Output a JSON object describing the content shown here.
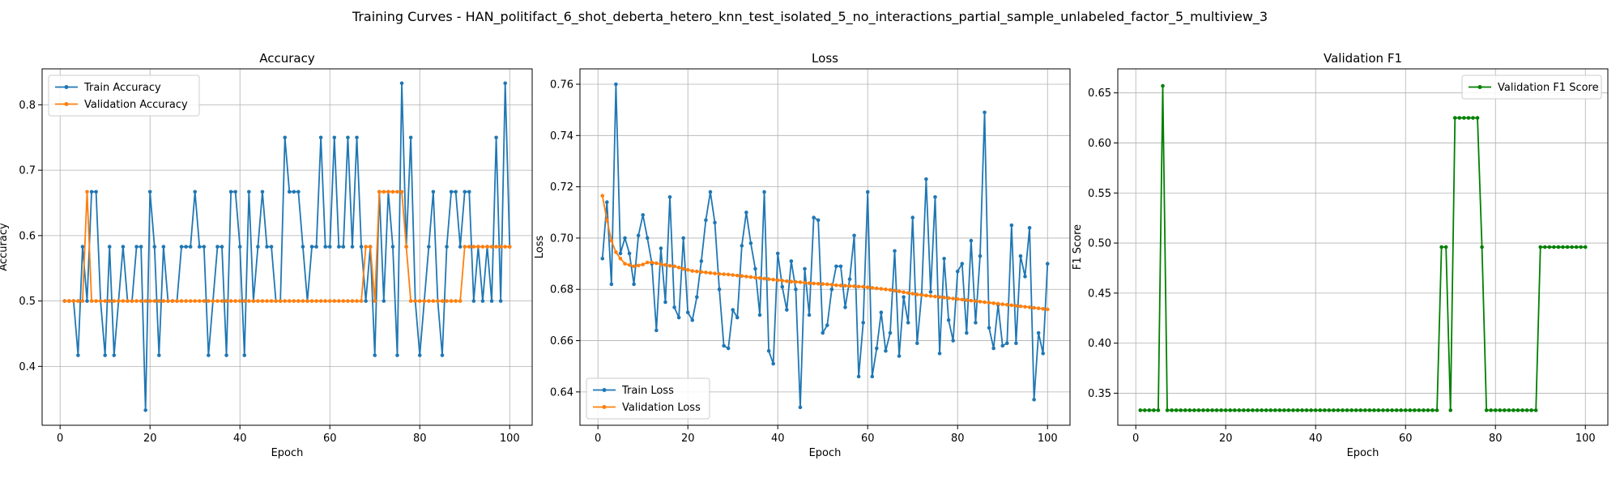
{
  "figure_title": "Training Curves - HAN_politifact_6_shot_deberta_hetero_knn_test_isolated_5_no_interactions_partial_sample_unlabeled_factor_5_multiview_3",
  "colors": {
    "train": "#1f77b4",
    "validation": "#ff7f0e",
    "f1": "#008000",
    "grid": "#b0b0b0"
  },
  "chart_data": [
    {
      "type": "line",
      "title": "Accuracy",
      "xlabel": "Epoch",
      "ylabel": "Accuracy",
      "xlim": [
        -4,
        105
      ],
      "ylim": [
        0.31,
        0.855
      ],
      "xticks": [
        0,
        20,
        40,
        60,
        80,
        100
      ],
      "yticks": [
        0.4,
        0.5,
        0.6,
        0.7,
        0.8
      ],
      "ytick_labels": [
        "0.4",
        "0.5",
        "0.6",
        "0.7",
        "0.8"
      ],
      "grid": true,
      "legend_position": "upper-left",
      "series": [
        {
          "name": "Train Accuracy",
          "color": "#1f77b4",
          "values": [
            0.5,
            0.5,
            0.5,
            0.417,
            0.583,
            0.5,
            0.667,
            0.667,
            0.5,
            0.417,
            0.583,
            0.417,
            0.5,
            0.583,
            0.5,
            0.5,
            0.583,
            0.583,
            0.333,
            0.667,
            0.583,
            0.417,
            0.583,
            0.5,
            0.5,
            0.5,
            0.583,
            0.583,
            0.583,
            0.667,
            0.583,
            0.583,
            0.417,
            0.5,
            0.583,
            0.583,
            0.417,
            0.667,
            0.667,
            0.583,
            0.417,
            0.667,
            0.5,
            0.583,
            0.667,
            0.583,
            0.583,
            0.5,
            0.5,
            0.75,
            0.667,
            0.667,
            0.667,
            0.583,
            0.5,
            0.583,
            0.583,
            0.75,
            0.583,
            0.583,
            0.75,
            0.583,
            0.583,
            0.75,
            0.583,
            0.75,
            0.583,
            0.5,
            0.583,
            0.417,
            0.667,
            0.5,
            0.667,
            0.583,
            0.417,
            0.833,
            0.583,
            0.75,
            0.5,
            0.417,
            0.5,
            0.583,
            0.667,
            0.5,
            0.417,
            0.583,
            0.667,
            0.667,
            0.583,
            0.667,
            0.667,
            0.5,
            0.583,
            0.5,
            0.583,
            0.5,
            0.75,
            0.5,
            0.833,
            0.583
          ]
        },
        {
          "name": "Validation Accuracy",
          "color": "#ff7f0e",
          "values": [
            0.5,
            0.5,
            0.5,
            0.5,
            0.5,
            0.667,
            0.5,
            0.5,
            0.5,
            0.5,
            0.5,
            0.5,
            0.5,
            0.5,
            0.5,
            0.5,
            0.5,
            0.5,
            0.5,
            0.5,
            0.5,
            0.5,
            0.5,
            0.5,
            0.5,
            0.5,
            0.5,
            0.5,
            0.5,
            0.5,
            0.5,
            0.5,
            0.5,
            0.5,
            0.5,
            0.5,
            0.5,
            0.5,
            0.5,
            0.5,
            0.5,
            0.5,
            0.5,
            0.5,
            0.5,
            0.5,
            0.5,
            0.5,
            0.5,
            0.5,
            0.5,
            0.5,
            0.5,
            0.5,
            0.5,
            0.5,
            0.5,
            0.5,
            0.5,
            0.5,
            0.5,
            0.5,
            0.5,
            0.5,
            0.5,
            0.5,
            0.5,
            0.583,
            0.583,
            0.5,
            0.667,
            0.667,
            0.667,
            0.667,
            0.667,
            0.667,
            0.583,
            0.5,
            0.5,
            0.5,
            0.5,
            0.5,
            0.5,
            0.5,
            0.5,
            0.5,
            0.5,
            0.5,
            0.5,
            0.583,
            0.583,
            0.583,
            0.583,
            0.583,
            0.583,
            0.583,
            0.583,
            0.583,
            0.583,
            0.583
          ]
        }
      ]
    },
    {
      "type": "line",
      "title": "Loss",
      "xlabel": "Epoch",
      "ylabel": "Loss",
      "xlim": [
        -4,
        105
      ],
      "ylim": [
        0.627,
        0.766
      ],
      "xticks": [
        0,
        20,
        40,
        60,
        80,
        100
      ],
      "yticks": [
        0.64,
        0.66,
        0.68,
        0.7,
        0.72,
        0.74,
        0.76
      ],
      "ytick_labels": [
        "0.64",
        "0.66",
        "0.68",
        "0.70",
        "0.72",
        "0.74",
        "0.76"
      ],
      "grid": true,
      "legend_position": "lower-left",
      "series": [
        {
          "name": "Train Loss",
          "color": "#1f77b4",
          "values": [
            0.692,
            0.714,
            0.682,
            0.76,
            0.694,
            0.7,
            0.694,
            0.682,
            0.701,
            0.709,
            0.7,
            0.69,
            0.664,
            0.696,
            0.675,
            0.716,
            0.673,
            0.669,
            0.7,
            0.671,
            0.668,
            0.677,
            0.691,
            0.707,
            0.718,
            0.706,
            0.68,
            0.658,
            0.657,
            0.672,
            0.669,
            0.697,
            0.71,
            0.698,
            0.688,
            0.67,
            0.718,
            0.656,
            0.651,
            0.694,
            0.681,
            0.672,
            0.691,
            0.68,
            0.634,
            0.688,
            0.67,
            0.708,
            0.707,
            0.663,
            0.666,
            0.68,
            0.689,
            0.689,
            0.673,
            0.684,
            0.701,
            0.646,
            0.667,
            0.718,
            0.646,
            0.657,
            0.671,
            0.656,
            0.663,
            0.695,
            0.654,
            0.677,
            0.667,
            0.708,
            0.659,
            0.678,
            0.723,
            0.679,
            0.716,
            0.655,
            0.692,
            0.668,
            0.66,
            0.687,
            0.69,
            0.663,
            0.699,
            0.667,
            0.693,
            0.749,
            0.665,
            0.657,
            0.674,
            0.658,
            0.659,
            0.705,
            0.659,
            0.693,
            0.685,
            0.704,
            0.637,
            0.663,
            0.655,
            0.69
          ]
        },
        {
          "name": "Validation Loss",
          "color": "#ff7f0e",
          "values": [
            0.7165,
            0.707,
            0.699,
            0.6945,
            0.692,
            0.69,
            0.6895,
            0.689,
            0.6893,
            0.6897,
            0.6905,
            0.6905,
            0.6902,
            0.6898,
            0.6895,
            0.6892,
            0.689,
            0.6885,
            0.688,
            0.6876,
            0.6872,
            0.687,
            0.6868,
            0.6866,
            0.6864,
            0.6862,
            0.686,
            0.6859,
            0.6858,
            0.6856,
            0.6854,
            0.6852,
            0.685,
            0.6848,
            0.6846,
            0.6844,
            0.6842,
            0.684,
            0.6838,
            0.6836,
            0.6834,
            0.6832,
            0.683,
            0.6829,
            0.6828,
            0.6826,
            0.6824,
            0.6823,
            0.6822,
            0.6821,
            0.682,
            0.6818,
            0.6816,
            0.6815,
            0.6814,
            0.6813,
            0.6812,
            0.6811,
            0.681,
            0.6808,
            0.6806,
            0.6804,
            0.6802,
            0.68,
            0.6798,
            0.6795,
            0.6792,
            0.6789,
            0.6786,
            0.6783,
            0.678,
            0.6778,
            0.6776,
            0.6774,
            0.6772,
            0.677,
            0.6768,
            0.6766,
            0.6764,
            0.6762,
            0.676,
            0.6758,
            0.6756,
            0.6754,
            0.6752,
            0.675,
            0.6748,
            0.6746,
            0.6744,
            0.6742,
            0.674,
            0.6738,
            0.6736,
            0.6734,
            0.6732,
            0.673,
            0.6728,
            0.6726,
            0.6724,
            0.6722
          ]
        }
      ]
    },
    {
      "type": "line",
      "title": "Validation F1",
      "xlabel": "Epoch",
      "ylabel": "F1 Score",
      "xlim": [
        -4,
        105
      ],
      "ylim": [
        0.318,
        0.674
      ],
      "xticks": [
        0,
        20,
        40,
        60,
        80,
        100
      ],
      "yticks": [
        0.35,
        0.4,
        0.45,
        0.5,
        0.55,
        0.6,
        0.65
      ],
      "ytick_labels": [
        "0.35",
        "0.40",
        "0.45",
        "0.50",
        "0.55",
        "0.60",
        "0.65"
      ],
      "grid": true,
      "legend_position": "upper-right",
      "series": [
        {
          "name": "Validation F1 Score",
          "color": "#008000",
          "values": [
            0.333,
            0.333,
            0.333,
            0.333,
            0.333,
            0.657,
            0.333,
            0.333,
            0.333,
            0.333,
            0.333,
            0.333,
            0.333,
            0.333,
            0.333,
            0.333,
            0.333,
            0.333,
            0.333,
            0.333,
            0.333,
            0.333,
            0.333,
            0.333,
            0.333,
            0.333,
            0.333,
            0.333,
            0.333,
            0.333,
            0.333,
            0.333,
            0.333,
            0.333,
            0.333,
            0.333,
            0.333,
            0.333,
            0.333,
            0.333,
            0.333,
            0.333,
            0.333,
            0.333,
            0.333,
            0.333,
            0.333,
            0.333,
            0.333,
            0.333,
            0.333,
            0.333,
            0.333,
            0.333,
            0.333,
            0.333,
            0.333,
            0.333,
            0.333,
            0.333,
            0.333,
            0.333,
            0.333,
            0.333,
            0.333,
            0.333,
            0.333,
            0.496,
            0.496,
            0.333,
            0.625,
            0.625,
            0.625,
            0.625,
            0.625,
            0.625,
            0.496,
            0.333,
            0.333,
            0.333,
            0.333,
            0.333,
            0.333,
            0.333,
            0.333,
            0.333,
            0.333,
            0.333,
            0.333,
            0.496,
            0.496,
            0.496,
            0.496,
            0.496,
            0.496,
            0.496,
            0.496,
            0.496,
            0.496,
            0.496
          ]
        }
      ]
    }
  ]
}
